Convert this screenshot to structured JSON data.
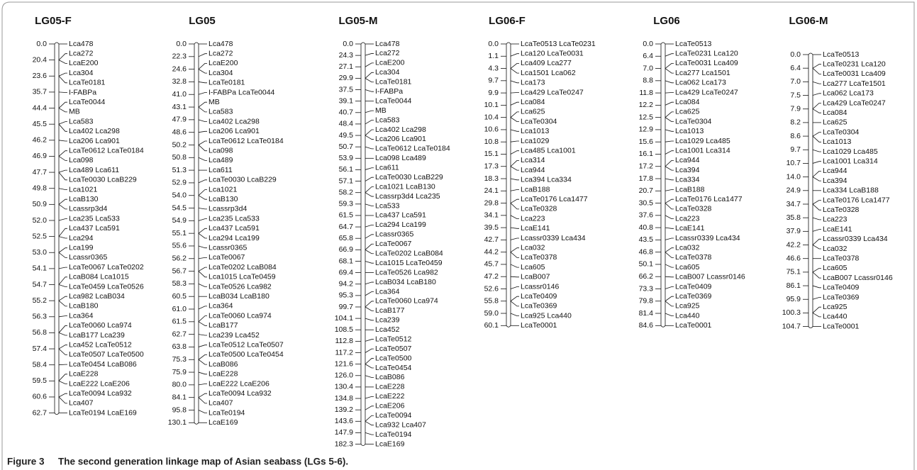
{
  "groups": [
    {
      "title": "LG05-F",
      "positions": [
        "0.0",
        "20.4",
        "23.6",
        "35.7",
        "44.4",
        "45.5",
        "46.2",
        "46.9",
        "47.7",
        "49.8",
        "50.9",
        "52.0",
        "52.5",
        "53.0",
        "54.1",
        "54.7",
        "55.2",
        "56.3",
        "56.8",
        "57.4",
        "58.4",
        "59.5",
        "60.6",
        "62.7"
      ],
      "markers": [
        "Lca478",
        "Lca272",
        "LcaE200",
        "Lca304",
        "LcaTe0181",
        "I-FABPa",
        "LcaTe0044",
        "MB",
        "Lca583",
        "Lca402 Lca298",
        "Lca206 Lca901",
        "LcaTe0612 LcaTe0184",
        "Lca098",
        "Lca489 Lca611",
        "LcaTe0030 LcaB229",
        "Lca1021",
        "LcaB130",
        "Lcassrp3d4",
        "Lca235 Lca533",
        "Lca437 Lca591",
        "Lca294",
        "Lca199",
        "Lcassr0365",
        "LcaTe0067 LcaTe0202",
        "LcaB084 Lca1015",
        "LcaTe0459 LcaTe0526",
        "Lca982 LcaB034",
        "LcaB180",
        "Lca364",
        "LcaTe0060 Lca974",
        "LcaB177 Lca239",
        "Lca452 LcaTe0512",
        "LcaTe0507 LcaTe0500",
        "LcaTe0454 LcaB086",
        "LcaE228",
        "LcaE222 LcaE206",
        "LcaTe0094 Lca932",
        "Lca407",
        "LcaTe0194 LcaE169"
      ]
    },
    {
      "title": "LG05",
      "positions": [
        "0.0",
        "22.3",
        "24.6",
        "32.8",
        "41.0",
        "43.1",
        "47.9",
        "48.6",
        "50.2",
        "50.8",
        "51.3",
        "52.9",
        "54.0",
        "54.5",
        "54.9",
        "55.1",
        "55.6",
        "56.2",
        "56.7",
        "58.3",
        "60.5",
        "61.0",
        "61.5",
        "62.7",
        "63.8",
        "75.3",
        "75.9",
        "80.0",
        "84.1",
        "95.8",
        "130.1"
      ],
      "markers": [
        "Lca478",
        "Lca272",
        "LcaE200",
        "Lca304",
        "LcaTe0181",
        "I-FABPa LcaTe0044",
        "MB",
        "Lca583",
        "Lca402 Lca298",
        "Lca206 Lca901",
        "LcaTe0612 LcaTe0184",
        "Lca098",
        "Lca489",
        "Lca611",
        "LcaTe0030 LcaB229",
        "Lca1021",
        "LcaB130",
        "Lcassrp3d4",
        "Lca235 Lca533",
        "Lca437 Lca591",
        "Lca294 Lca199",
        "Lcassr0365",
        "LcaTe0067",
        "LcaTe0202 LcaB084",
        "Lca1015 LcaTe0459",
        "LcaTe0526 Lca982",
        "LcaB034 LcaB180",
        "Lca364",
        "LcaTe0060 Lca974",
        "LcaB177",
        "Lca239 Lca452",
        "LcaTe0512 LcaTe0507",
        "LcaTe0500 LcaTe0454",
        "LcaB086",
        "LcaE228",
        "LcaE222 LcaE206",
        "LcaTe0094 Lca932",
        "Lca407",
        "LcaTe0194",
        "LcaE169"
      ]
    },
    {
      "title": "LG05-M",
      "positions": [
        "0.0",
        "24.3",
        "27.1",
        "29.9",
        "37.5",
        "39.1",
        "40.7",
        "48.4",
        "49.5",
        "50.7",
        "53.9",
        "56.1",
        "57.1",
        "58.2",
        "59.3",
        "61.5",
        "64.7",
        "65.8",
        "66.9",
        "68.1",
        "69.4",
        "94.2",
        "95.3",
        "99.7",
        "104.1",
        "108.5",
        "112.8",
        "117.2",
        "121.6",
        "126.0",
        "130.4",
        "134.8",
        "139.2",
        "143.6",
        "147.9",
        "182.3"
      ],
      "markers": [
        "Lca478",
        "Lca272",
        "LcaE200",
        "Lca304",
        "LcaTe0181",
        "I-FABPa",
        "LcaTe0044",
        "MB",
        "Lca583",
        "Lca402 Lca298",
        "Lca206 Lca901",
        "LcaTe0612 LcaTe0184",
        "Lca098 Lca489",
        "Lca611",
        "LcaTe0030 LcaB229",
        "Lca1021 LcaB130",
        "Lcassrp3d4 Lca235",
        "Lca533",
        "Lca437 Lca591",
        "Lca294 Lca199",
        "Lcassr0365",
        "LcaTe0067",
        "LcaTe0202 LcaB084",
        "Lca1015 LcaTe0459",
        "LcaTe0526 Lca982",
        "LcaB034 LcaB180",
        "Lca364",
        "LcaTe0060 Lca974",
        "LcaB177",
        "Lca239",
        "Lca452",
        "LcaTe0512",
        "LcaTe0507",
        "LcaTe0500",
        "LcaTe0454",
        "LcaB086",
        "LcaE228",
        "LcaE222",
        "LcaE206",
        "LcaTe0094",
        "Lca932 Lca407",
        "LcaTe0194",
        "LcaE169"
      ]
    },
    {
      "title": "LG06-F",
      "positions": [
        "0.0",
        "1.1",
        "4.3",
        "9.7",
        "9.9",
        "10.1",
        "10.4",
        "10.6",
        "10.8",
        "15.1",
        "17.3",
        "18.3",
        "24.1",
        "29.8",
        "34.1",
        "39.5",
        "42.7",
        "44.2",
        "45.7",
        "47.2",
        "52.6",
        "55.8",
        "59.0",
        "60.1"
      ],
      "markers": [
        "LcaTe0513 LcaTe0231",
        "Lca120 LcaTe0031",
        "Lca409 Lca277",
        "Lca1501 Lca062",
        "Lca173",
        "Lca429 LcaTe0247",
        "Lca084",
        "Lca625",
        "LcaTe0304",
        "Lca1013",
        "Lca1029",
        "Lca485 Lca1001",
        "Lca314",
        "Lca944",
        "Lca394 Lca334",
        "LcaB188",
        "LcaTe0176 Lca1477",
        "LcaTe0328",
        "Lca223",
        "LcaE141",
        "Lcassr0339 Lca434",
        "Lca032",
        "LcaTe0378",
        "Lca605",
        "LcaB007",
        "Lcassr0146",
        "LcaTe0409",
        "LcaTe0369",
        "Lca925 Lca440",
        "LcaTe0001"
      ]
    },
    {
      "title": "LG06",
      "positions": [
        "0.0",
        "6.4",
        "7.0",
        "8.8",
        "11.8",
        "12.2",
        "12.5",
        "12.9",
        "15.6",
        "16.1",
        "17.2",
        "17.8",
        "20.7",
        "30.5",
        "37.6",
        "40.8",
        "43.5",
        "46.8",
        "50.1",
        "66.2",
        "73.3",
        "79.8",
        "81.4",
        "84.6"
      ],
      "markers": [
        "LcaTe0513",
        "LcaTe0231 Lca120",
        "LcaTe0031 Lca409",
        "Lca277 Lca1501",
        "Lca062 Lca173",
        "Lca429 LcaTe0247",
        "Lca084",
        "Lca625",
        "LcaTe0304",
        "Lca1013",
        "Lca1029 Lca485",
        "Lca1001 Lca314",
        "Lca944",
        "Lca394",
        "Lca334",
        "LcaB188",
        "LcaTe0176 Lca1477",
        "LcaTe0328",
        "Lca223",
        "LcaE141",
        "Lcassr0339 Lca434",
        "Lca032",
        "LcaTe0378",
        "Lca605",
        "LcaB007 Lcassr0146",
        "LcaTe0409",
        "LcaTe0369",
        "Lca925",
        "Lca440",
        "LcaTe0001"
      ]
    },
    {
      "title": "LG06-M",
      "positions": [
        "0.0",
        "6.4",
        "7.0",
        "7.5",
        "7.9",
        "8.2",
        "8.6",
        "9.7",
        "10.7",
        "14.0",
        "24.9",
        "34.7",
        "35.8",
        "37.9",
        "42.2",
        "46.6",
        "75.1",
        "86.1",
        "95.9",
        "100.3",
        "104.7"
      ],
      "markers": [
        "LcaTe0513",
        "LcaTe0231 Lca120",
        "LcaTe0031 Lca409",
        "Lca277 LcaTe1501",
        "Lca062 Lca173",
        "Lca429 LcaTe0247",
        "Lca084",
        "Lca625",
        "LcaTe0304",
        "Lca1013",
        "Lca1029 Lca485",
        "Lca1001 Lca314",
        "Lca944",
        "Lca394",
        "Lca334 LcaB188",
        "LcaTe0176 Lca1477",
        "LcaTe0328",
        "Lca223",
        "LcaE141",
        "Lcassr0339 Lca434",
        "Lca032",
        "LcaTe0378",
        "Lca605",
        "LcaB007 Lcassr0146",
        "LcaTe0409",
        "LcaTe0369",
        "Lca925",
        "Lca440",
        "LcaTe0001"
      ]
    }
  ],
  "caption": {
    "label": "Figure 3",
    "text": "The second generation linkage map of Asian seabass (LGs 5-6)."
  }
}
